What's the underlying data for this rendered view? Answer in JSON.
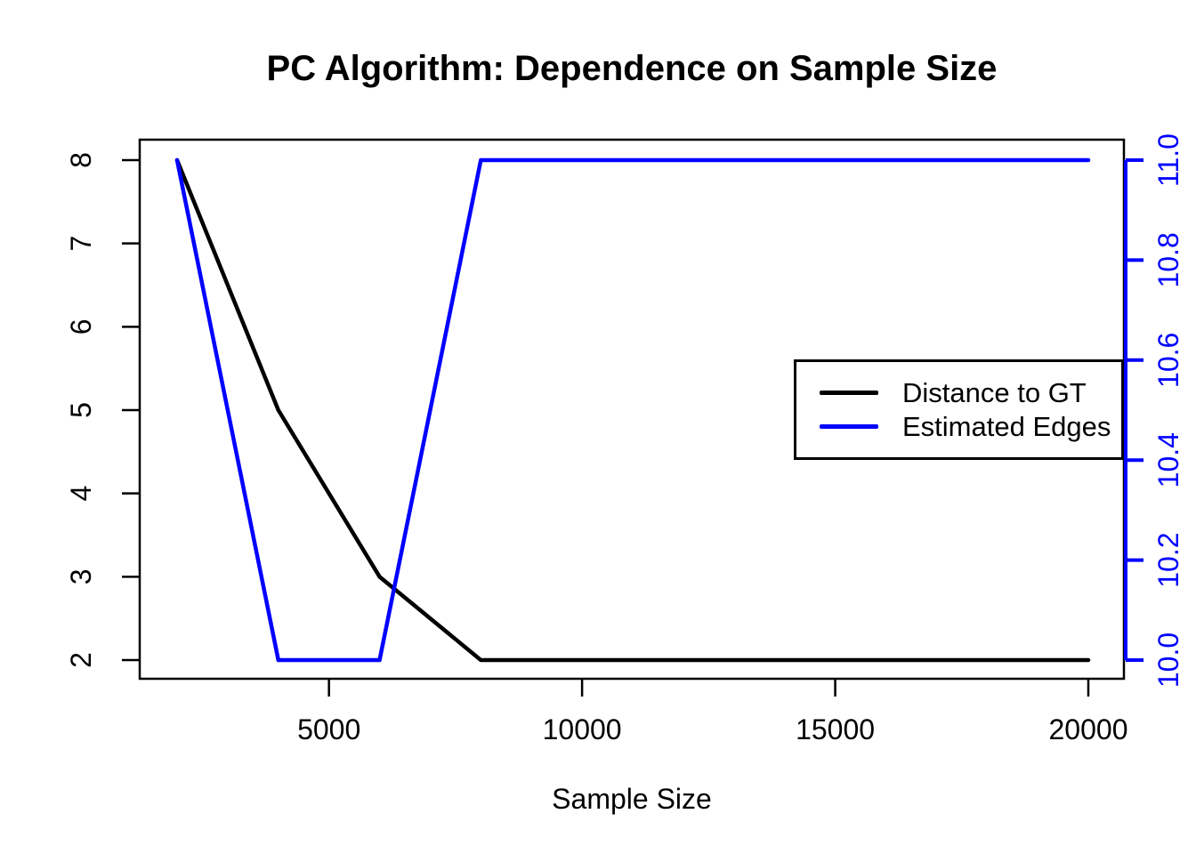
{
  "title": "PC Algorithm: Dependence on Sample Size",
  "x_axis": {
    "label": "Sample Size"
  },
  "legend": {
    "items": [
      {
        "label": "Distance to GT",
        "color": "#000000"
      },
      {
        "label": "Estimated Edges",
        "color": "#0000ff"
      }
    ]
  },
  "chart_data": {
    "type": "line",
    "title": "PC Algorithm: Dependence on Sample Size",
    "xlabel": "Sample Size",
    "x": [
      2000,
      4000,
      6000,
      8000,
      20000
    ],
    "series": [
      {
        "name": "Distance to GT",
        "axis": "left",
        "color": "#000000",
        "values": [
          8,
          5,
          3,
          2,
          2
        ]
      },
      {
        "name": "Estimated Edges",
        "axis": "right",
        "color": "#0000ff",
        "values": [
          11,
          10,
          10,
          11,
          11
        ]
      }
    ],
    "xlim": [
      2000,
      20000
    ],
    "left_ylim": [
      2,
      8
    ],
    "right_ylim": [
      10,
      11
    ],
    "x_ticks": [
      5000,
      10000,
      15000,
      20000
    ],
    "left_ticks": [
      2,
      3,
      4,
      5,
      6,
      7,
      8
    ],
    "right_ticks": [
      "10.0",
      "10.2",
      "10.4",
      "10.6",
      "10.8",
      "11.0"
    ],
    "left_axis_color": "#000000",
    "right_axis_color": "#0000ff",
    "grid": false,
    "legend_position": "right-middle"
  }
}
